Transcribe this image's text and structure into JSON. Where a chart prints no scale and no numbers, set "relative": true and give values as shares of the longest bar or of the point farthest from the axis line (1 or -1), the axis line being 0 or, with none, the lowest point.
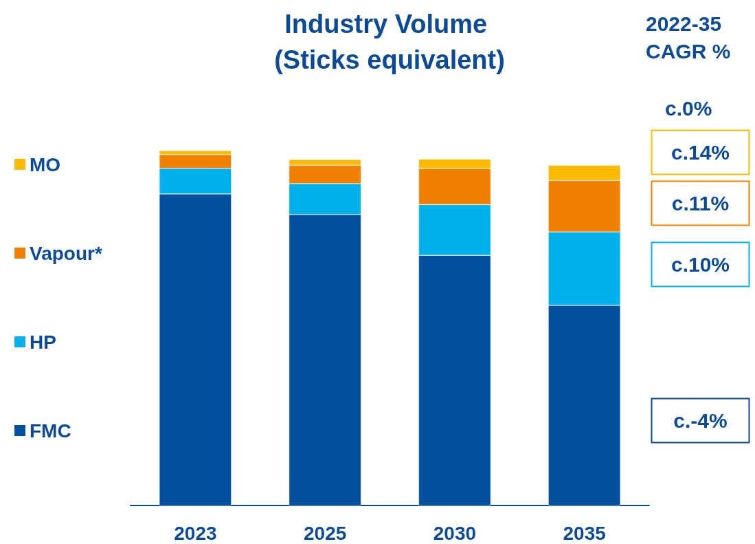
{
  "chart_data": {
    "type": "bar",
    "title": "Industry Volume (Sticks equivalent)",
    "categories": [
      "2023",
      "2025",
      "2030",
      "2035"
    ],
    "stacked": true,
    "relative": true,
    "legend": "left",
    "series": [
      {
        "name": "FMC",
        "color": "#00509e",
        "values": [
          0.878,
          0.82,
          0.705,
          0.564
        ]
      },
      {
        "name": "HP",
        "color": "#00b0eb",
        "values": [
          0.072,
          0.087,
          0.143,
          0.207
        ]
      },
      {
        "name": "Vapour*",
        "color": "#f08000",
        "values": [
          0.039,
          0.052,
          0.101,
          0.145
        ]
      },
      {
        "name": "MO",
        "color": "#fbb900",
        "values": [
          0.011,
          0.016,
          0.027,
          0.043
        ]
      }
    ],
    "annotations": [
      "2022-35 CAGR %",
      "c.0%",
      "c.14%",
      "c.11%",
      "c.10%",
      "c.-4%"
    ]
  }
}
